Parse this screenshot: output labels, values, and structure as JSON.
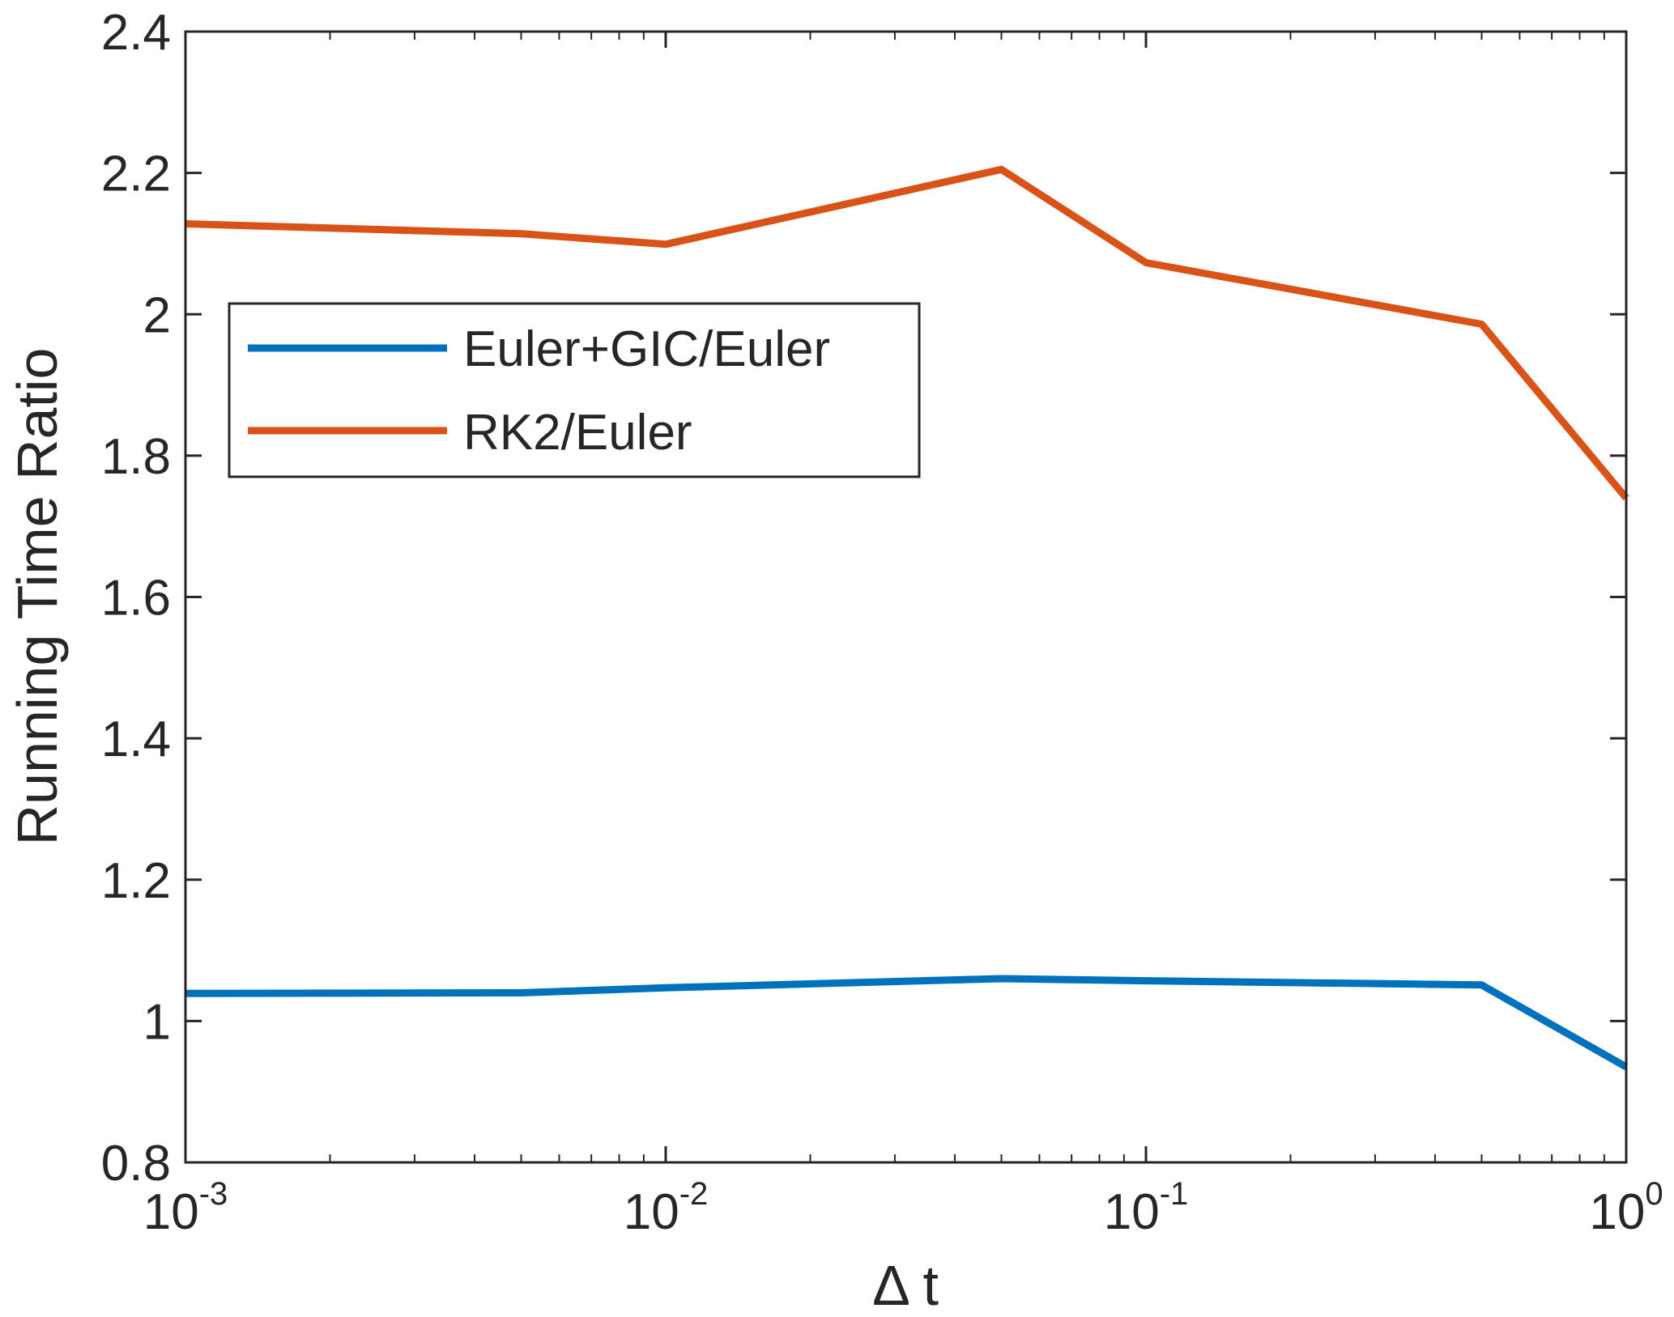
{
  "chart_data": {
    "type": "line",
    "title": "",
    "xlabel": "Δ t",
    "ylabel": "Running Time Ratio",
    "xscale": "log",
    "xlim": [
      0.001,
      1
    ],
    "ylim": [
      0.8,
      2.4
    ],
    "x_ticks": [
      {
        "value": 0.001,
        "base": "10",
        "exp": "-3"
      },
      {
        "value": 0.01,
        "base": "10",
        "exp": "-2"
      },
      {
        "value": 0.1,
        "base": "10",
        "exp": "-1"
      },
      {
        "value": 1,
        "base": "10",
        "exp": "0"
      }
    ],
    "y_ticks": [
      {
        "value": 0.8,
        "label": "0.8"
      },
      {
        "value": 1.0,
        "label": "1"
      },
      {
        "value": 1.2,
        "label": "1.2"
      },
      {
        "value": 1.4,
        "label": "1.4"
      },
      {
        "value": 1.6,
        "label": "1.6"
      },
      {
        "value": 1.8,
        "label": "1.8"
      },
      {
        "value": 2.0,
        "label": "2"
      },
      {
        "value": 2.2,
        "label": "2.2"
      },
      {
        "value": 2.4,
        "label": "2.4"
      }
    ],
    "grid": false,
    "legend_position": "upper-left",
    "x": [
      0.001,
      0.005,
      0.01,
      0.05,
      0.1,
      0.5,
      1
    ],
    "series": [
      {
        "name": "Euler+GIC/Euler",
        "color": "#0072BD",
        "values": [
          1.039,
          1.04,
          1.047,
          1.06,
          1.057,
          1.051,
          0.935
        ]
      },
      {
        "name": "RK2/Euler",
        "color": "#D95319",
        "values": [
          2.128,
          2.114,
          2.099,
          2.205,
          2.073,
          1.986,
          1.74
        ]
      }
    ]
  }
}
